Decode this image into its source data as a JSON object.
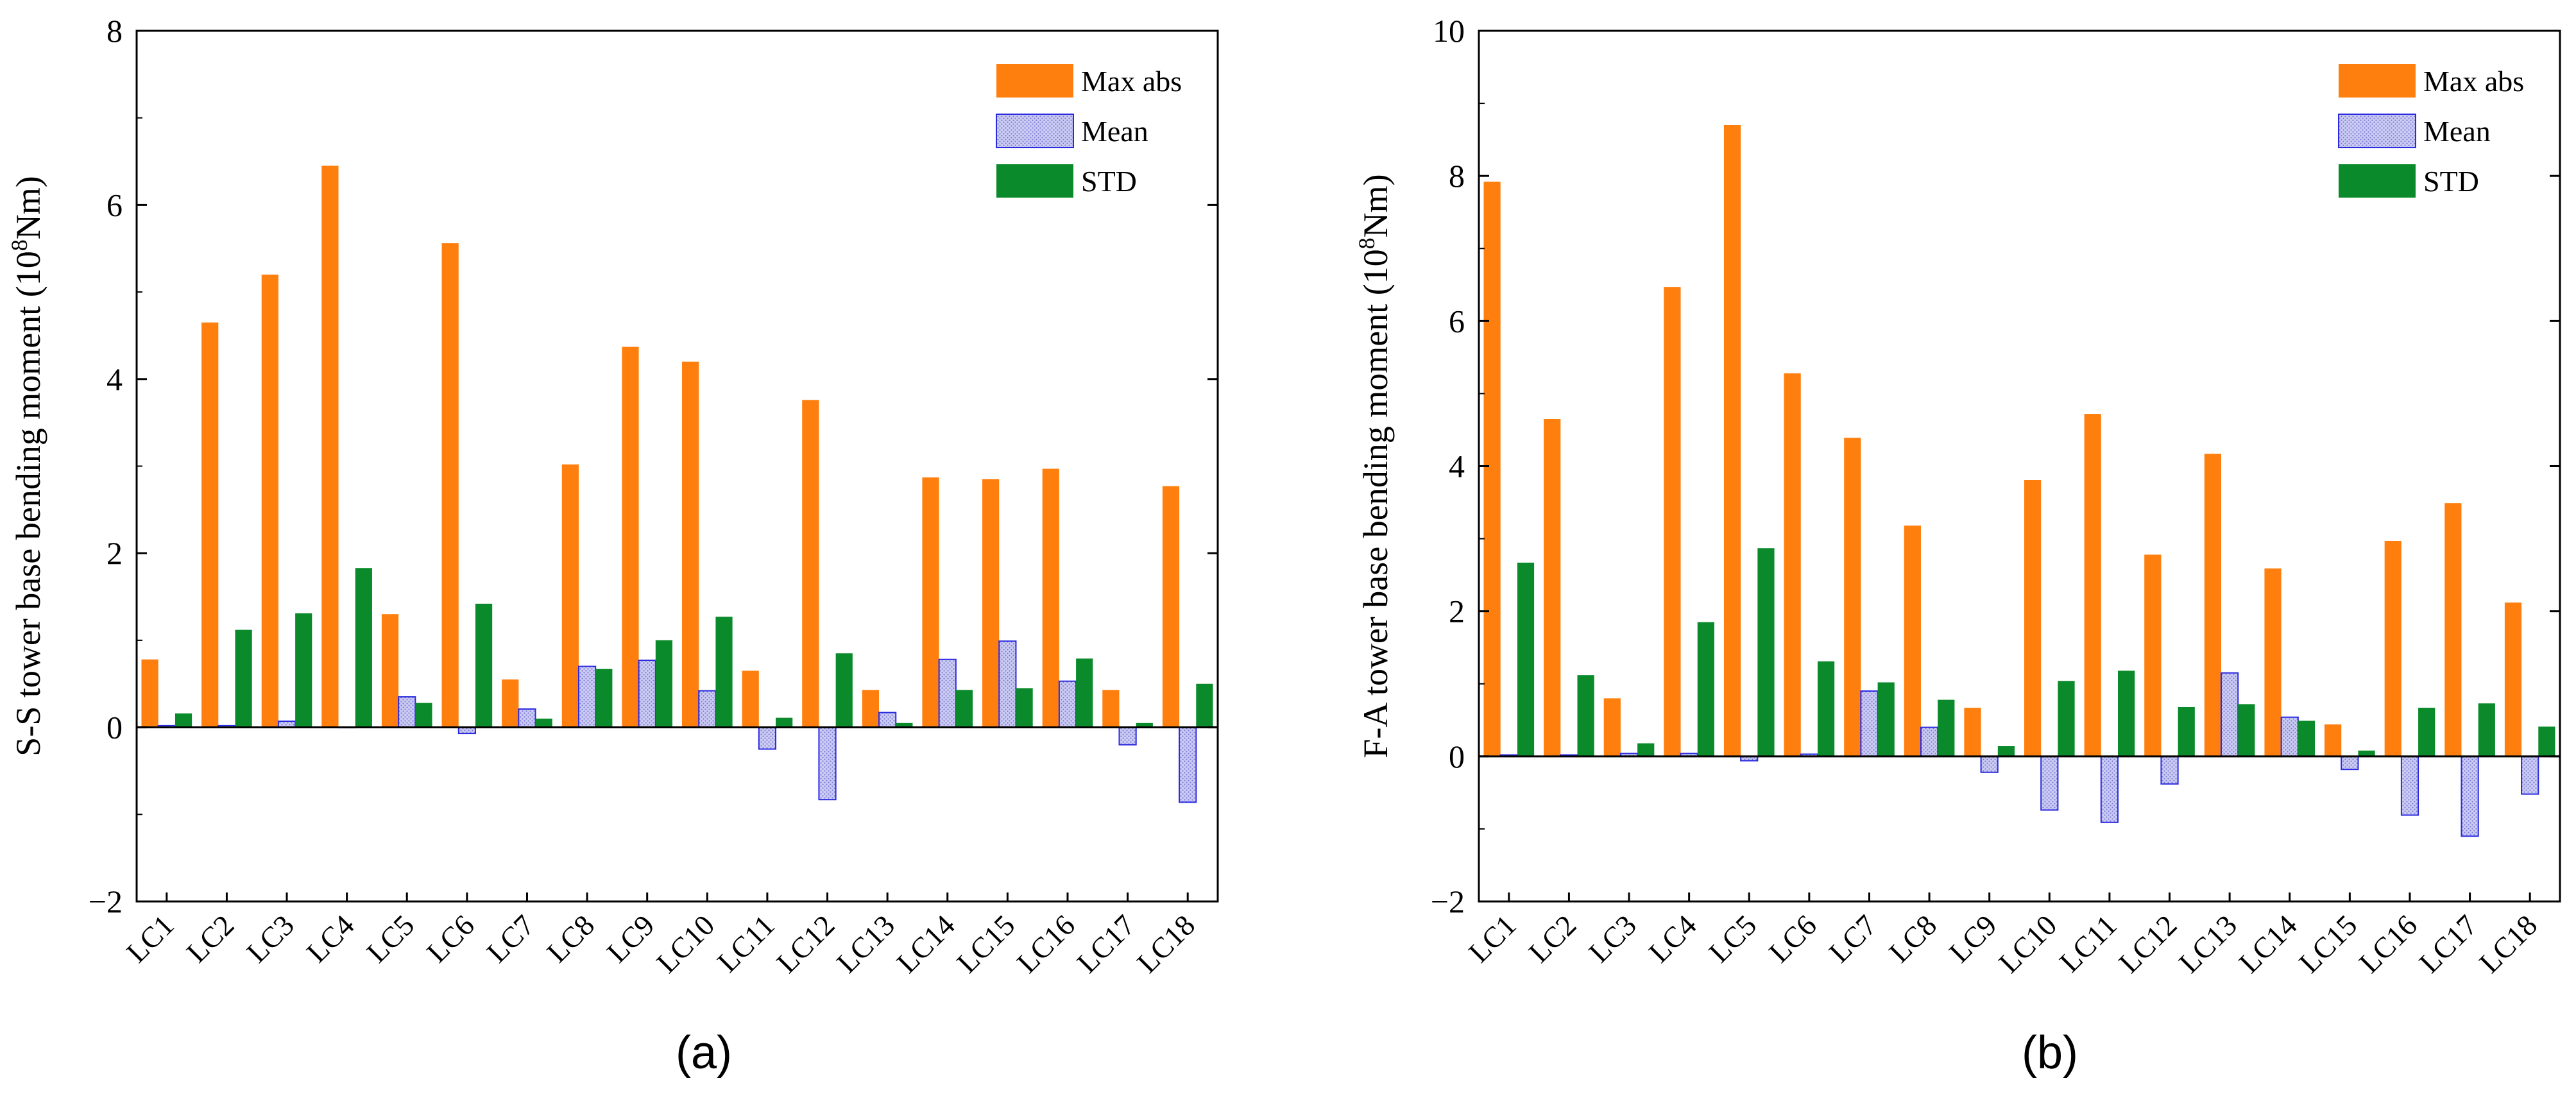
{
  "chart_data": [
    {
      "type": "bar",
      "panel_label": "(a)",
      "ylabel_main": "S-S tower base bending moment",
      "ylabel_unit_prefix": "(10",
      "ylabel_unit_exp": "8",
      "ylabel_unit_suffix": "Nm)",
      "ylim": [
        -2,
        8
      ],
      "yticks": [
        -2,
        0,
        2,
        4,
        6,
        8
      ],
      "legend_position": "top-right",
      "categories": [
        "LC1",
        "LC2",
        "LC3",
        "LC4",
        "LC5",
        "LC6",
        "LC7",
        "LC8",
        "LC9",
        "LC10",
        "LC11",
        "LC12",
        "LC13",
        "LC14",
        "LC15",
        "LC16",
        "LC17",
        "LC18"
      ],
      "series": [
        {
          "name": "Max abs",
          "color": "#ff7f0e",
          "values": [
            0.78,
            4.65,
            5.2,
            6.45,
            1.3,
            5.56,
            0.55,
            3.02,
            4.37,
            4.2,
            0.65,
            3.76,
            0.43,
            2.87,
            2.85,
            2.97,
            0.43,
            2.77
          ]
        },
        {
          "name": "Mean",
          "color": "#c8c8f0",
          "values": [
            0.02,
            0.02,
            0.07,
            0.0,
            0.35,
            -0.07,
            0.21,
            0.7,
            0.77,
            0.42,
            -0.25,
            -0.83,
            0.17,
            0.78,
            0.99,
            0.53,
            -0.2,
            -0.86
          ]
        },
        {
          "name": "STD",
          "color": "#0a8a2a",
          "values": [
            0.16,
            1.12,
            1.31,
            1.83,
            0.28,
            1.42,
            0.1,
            0.67,
            1.0,
            1.27,
            0.11,
            0.85,
            0.05,
            0.43,
            0.45,
            0.79,
            0.05,
            0.5
          ]
        }
      ]
    },
    {
      "type": "bar",
      "panel_label": "(b)",
      "ylabel_main": "F-A tower base bending moment",
      "ylabel_unit_prefix": "(10",
      "ylabel_unit_exp": "8",
      "ylabel_unit_suffix": "Nm)",
      "ylim": [
        -2,
        10
      ],
      "yticks": [
        -2,
        0,
        2,
        4,
        6,
        8,
        10
      ],
      "legend_position": "top-right",
      "categories": [
        "LC1",
        "LC2",
        "LC3",
        "LC4",
        "LC5",
        "LC6",
        "LC7",
        "LC8",
        "LC9",
        "LC10",
        "LC11",
        "LC12",
        "LC13",
        "LC14",
        "LC15",
        "LC16",
        "LC17",
        "LC18"
      ],
      "series": [
        {
          "name": "Max abs",
          "color": "#ff7f0e",
          "values": [
            7.92,
            4.65,
            0.8,
            6.47,
            8.7,
            5.28,
            4.39,
            3.18,
            0.67,
            3.81,
            4.72,
            2.78,
            4.17,
            2.59,
            0.44,
            2.97,
            3.49,
            2.12
          ]
        },
        {
          "name": "Mean",
          "color": "#c8c8f0",
          "values": [
            0.02,
            0.02,
            0.04,
            0.04,
            -0.06,
            0.03,
            0.9,
            0.4,
            -0.22,
            -0.74,
            -0.91,
            -0.38,
            1.15,
            0.54,
            -0.18,
            -0.81,
            -1.1,
            -0.52
          ]
        },
        {
          "name": "STD",
          "color": "#0a8a2a",
          "values": [
            2.67,
            1.12,
            0.18,
            1.85,
            2.87,
            1.31,
            1.02,
            0.78,
            0.14,
            1.04,
            1.18,
            0.68,
            0.72,
            0.49,
            0.08,
            0.67,
            0.73,
            0.41
          ]
        }
      ]
    }
  ]
}
